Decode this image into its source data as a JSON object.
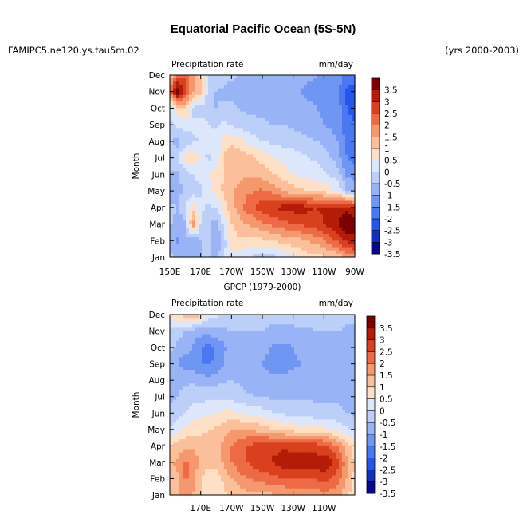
{
  "figure": {
    "title": "Equatorial Pacific Ocean (5S-5N)",
    "case_name": "FAMIPC5.ne120.ys.tau5m.02",
    "years": "(yrs 2000-2003)"
  },
  "chart_data": [
    {
      "type": "heatmap",
      "title": "",
      "left_label": "Precipitation rate",
      "units": "mm/day",
      "ylabel": "Month",
      "xlabel": "",
      "x_tick_labels": [
        "150E",
        "170E",
        "170W",
        "150W",
        "130W",
        "110W",
        "90W"
      ],
      "y_tick_labels": [
        "Jan",
        "Feb",
        "Mar",
        "Apr",
        "May",
        "Jun",
        "Jul",
        "Aug",
        "Sep",
        "Oct",
        "Nov",
        "Dec"
      ],
      "xlim": [
        150,
        270
      ],
      "ylim": [
        1,
        12
      ],
      "levels": [
        -3.5,
        -3,
        -2.5,
        -2,
        -1.5,
        -1,
        -0.5,
        0,
        0.5,
        1,
        1.5,
        2,
        2.5,
        3,
        3.5
      ],
      "colorbar_labels": [
        "3.5",
        "3",
        "2.5",
        "2",
        "1.5",
        "1",
        "0.5",
        "0",
        "-0.5",
        "-1",
        "-1.5",
        "-2",
        "-2.5",
        "-3",
        "-3.5"
      ],
      "colors": [
        "#08088c",
        "#1030c0",
        "#2456ec",
        "#4a78f2",
        "#7096f4",
        "#98b4f6",
        "#bccff8",
        "#dde7fb",
        "#fde0c6",
        "#fbc09a",
        "#f6986e",
        "#ee6a44",
        "#d8401e",
        "#b41c08",
        "#7c0202"
      ],
      "x_nodes": [
        150,
        155,
        160,
        165,
        170,
        175,
        180,
        185,
        190,
        195,
        200,
        205,
        210,
        215,
        220,
        225,
        230,
        235,
        240,
        245,
        250,
        255,
        260,
        265,
        270
      ],
      "y_nodes": [
        1,
        2,
        3,
        4,
        5,
        6,
        7,
        8,
        9,
        10,
        11,
        12
      ],
      "z": [
        [
          -0.8,
          -1.2,
          -1.3,
          -1.2,
          -1.0,
          -0.9,
          -1.2,
          -0.5,
          -0.2,
          -0.2,
          -0.4,
          -0.6,
          -0.7,
          -0.7,
          -0.6,
          -0.3,
          -0.1,
          0.1,
          0.3,
          0.3,
          0.4,
          0.5,
          0.8,
          1.2,
          1.4
        ],
        [
          -1.2,
          -1.6,
          -1.0,
          -1.4,
          -1.0,
          -0.8,
          -1.4,
          -0.8,
          0.3,
          0.4,
          0.3,
          0.3,
          0.4,
          0.5,
          0.6,
          0.7,
          0.8,
          0.9,
          1.0,
          1.2,
          1.5,
          1.8,
          2.2,
          2.6,
          2.8
        ],
        [
          -0.9,
          -1.3,
          -1.1,
          1.5,
          -0.6,
          -0.9,
          -1.2,
          -0.4,
          0.5,
          0.8,
          1.0,
          1.2,
          1.4,
          1.6,
          1.7,
          1.9,
          2.0,
          2.1,
          2.2,
          2.3,
          2.5,
          2.8,
          3.1,
          3.5,
          3.4
        ],
        [
          -0.8,
          -1.0,
          -0.6,
          0.3,
          -0.4,
          -0.6,
          -0.5,
          0.2,
          0.8,
          1.2,
          1.7,
          2.0,
          2.3,
          2.5,
          2.6,
          2.7,
          2.7,
          2.8,
          2.6,
          2.5,
          2.6,
          2.7,
          2.8,
          2.8,
          2.5
        ],
        [
          -1.5,
          -1.3,
          -0.7,
          -0.8,
          -0.6,
          -0.3,
          0.2,
          0.6,
          1.0,
          1.2,
          1.4,
          1.5,
          1.6,
          1.4,
          1.2,
          0.9,
          0.7,
          0.6,
          0.5,
          0.4,
          0.3,
          0.2,
          -0.3,
          -1.0,
          -1.2
        ],
        [
          -1.2,
          -1.1,
          -0.8,
          -0.5,
          -0.3,
          0.0,
          0.3,
          0.5,
          0.7,
          0.8,
          0.9,
          0.9,
          0.8,
          0.6,
          0.4,
          0.2,
          0.0,
          -0.1,
          -0.2,
          -0.3,
          -0.4,
          -0.6,
          -0.9,
          -1.6,
          -1.8
        ],
        [
          -0.5,
          -0.6,
          0.3,
          0.5,
          -0.3,
          -0.6,
          -0.4,
          0.6,
          1.0,
          0.9,
          0.7,
          0.5,
          0.3,
          0.1,
          -0.1,
          -0.2,
          -0.3,
          -0.4,
          -0.5,
          -0.6,
          -0.8,
          -1.0,
          -1.4,
          -2.0,
          -2.2
        ],
        [
          -1.0,
          -1.2,
          -0.8,
          -0.6,
          -0.5,
          -0.3,
          -0.2,
          0.2,
          0.3,
          0.2,
          -0.1,
          -0.3,
          -0.5,
          -0.6,
          -0.6,
          -0.7,
          -0.7,
          -0.8,
          -0.9,
          -1.0,
          -1.1,
          -1.3,
          -1.6,
          -2.2,
          -2.4
        ],
        [
          -0.6,
          -0.4,
          -0.2,
          -0.4,
          -0.3,
          -0.5,
          -0.6,
          -0.4,
          -0.5,
          -0.7,
          -0.8,
          -0.9,
          -0.9,
          -1.0,
          -1.0,
          -1.0,
          -1.1,
          -1.2,
          -1.3,
          -1.4,
          -1.5,
          -1.6,
          -1.8,
          -2.4,
          -2.5
        ],
        [
          -0.4,
          0.3,
          0.6,
          -0.6,
          -0.7,
          -0.9,
          -1.0,
          -0.9,
          -0.9,
          -1.0,
          -1.1,
          -1.1,
          -1.1,
          -1.2,
          -1.2,
          -1.2,
          -1.3,
          -1.4,
          -1.4,
          -1.5,
          -1.6,
          -1.7,
          -1.9,
          -2.5,
          -2.6
        ],
        [
          1.5,
          3.6,
          2.2,
          1.1,
          0.6,
          -0.7,
          -1.0,
          -1.1,
          -1.2,
          -1.3,
          -1.3,
          -1.4,
          -1.4,
          -1.5,
          -1.5,
          -1.4,
          -1.5,
          -1.5,
          -1.6,
          -1.6,
          -1.6,
          -1.8,
          -2.0,
          -2.6,
          -2.7
        ],
        [
          0.6,
          1.6,
          2.0,
          1.2,
          0.4,
          -0.5,
          -0.7,
          -0.8,
          -0.9,
          -1.0,
          -1.1,
          -1.1,
          -1.2,
          -1.2,
          -1.3,
          -1.3,
          -1.3,
          -1.4,
          -1.4,
          -1.5,
          -1.5,
          -1.6,
          -1.8,
          -2.2,
          -2.3
        ]
      ]
    },
    {
      "type": "heatmap",
      "title": "GPCP (1979-2000)",
      "left_label": "Precipitation rate",
      "units": "mm/day",
      "ylabel": "Month",
      "xlabel": "",
      "x_tick_labels": [
        "170E",
        "170W",
        "150W",
        "130W",
        "110W"
      ],
      "y_tick_labels": [
        "Jan",
        "Feb",
        "Mar",
        "Apr",
        "May",
        "Jun",
        "Jul",
        "Aug",
        "Sep",
        "Oct",
        "Nov",
        "Dec"
      ],
      "xlim": [
        150,
        270
      ],
      "ylim": [
        1,
        12
      ],
      "levels": [
        -3.5,
        -3,
        -2.5,
        -2,
        -1.5,
        -1,
        -0.5,
        0,
        0.5,
        1,
        1.5,
        2,
        2.5,
        3,
        3.5
      ],
      "colorbar_labels": [
        "3.5",
        "3",
        "2.5",
        "2",
        "1.5",
        "1",
        "0.5",
        "0",
        "-0.5",
        "-1",
        "-1.5",
        "-2",
        "-2.5",
        "-3",
        "-3.5"
      ],
      "colors": [
        "#08088c",
        "#1030c0",
        "#2456ec",
        "#4a78f2",
        "#7096f4",
        "#98b4f6",
        "#bccff8",
        "#dde7fb",
        "#fde0c6",
        "#fbc09a",
        "#f6986e",
        "#ee6a44",
        "#d8401e",
        "#b41c08",
        "#7c0202"
      ],
      "x_nodes": [
        150,
        155,
        160,
        165,
        170,
        175,
        180,
        185,
        190,
        195,
        200,
        205,
        210,
        215,
        220,
        225,
        230,
        235,
        240,
        245,
        250,
        255,
        260,
        265,
        270
      ],
      "y_nodes": [
        1,
        2,
        3,
        4,
        5,
        6,
        7,
        8,
        9,
        10,
        11,
        12
      ],
      "z": [
        [
          0.8,
          0.9,
          1.2,
          1.0,
          0.6,
          0.3,
          0.2,
          0.4,
          0.6,
          0.7,
          0.8,
          0.8,
          0.9,
          0.9,
          1.0,
          1.0,
          1.1,
          1.1,
          1.2,
          1.2,
          1.3,
          1.2,
          1.0,
          0.6,
          0.2
        ],
        [
          0.6,
          0.9,
          1.6,
          1.3,
          0.5,
          0.3,
          0.2,
          0.6,
          1.0,
          1.3,
          1.5,
          1.6,
          1.7,
          1.8,
          1.9,
          2.0,
          2.1,
          2.0,
          2.0,
          2.1,
          2.2,
          2.0,
          1.6,
          1.0,
          0.3
        ],
        [
          0.9,
          1.1,
          1.6,
          1.4,
          0.8,
          0.6,
          0.7,
          1.1,
          1.5,
          1.8,
          2.0,
          2.2,
          2.4,
          2.5,
          2.6,
          2.8,
          2.8,
          2.9,
          2.8,
          2.8,
          2.9,
          2.6,
          2.0,
          1.2,
          0.4
        ],
        [
          0.5,
          0.7,
          0.9,
          0.9,
          0.7,
          0.6,
          0.8,
          1.1,
          1.5,
          1.8,
          2.0,
          2.2,
          2.3,
          2.4,
          2.4,
          2.4,
          2.3,
          2.3,
          2.3,
          2.2,
          2.1,
          1.8,
          1.3,
          0.7,
          0.2
        ],
        [
          -0.4,
          -0.2,
          0.1,
          0.3,
          0.4,
          0.5,
          0.6,
          0.8,
          1.0,
          1.0,
          1.0,
          0.9,
          0.8,
          0.6,
          0.5,
          0.4,
          0.3,
          0.2,
          0.2,
          0.1,
          0.1,
          0.0,
          -0.2,
          -0.4,
          -0.6
        ],
        [
          -0.9,
          -0.8,
          -0.5,
          -0.3,
          -0.2,
          -0.1,
          0.0,
          0.1,
          0.1,
          0.0,
          -0.1,
          -0.2,
          -0.3,
          -0.4,
          -0.5,
          -0.6,
          -0.6,
          -0.7,
          -0.7,
          -0.8,
          -0.8,
          -0.8,
          -0.9,
          -1.0,
          -1.1
        ],
        [
          -1.1,
          -1.0,
          -0.8,
          -0.7,
          -0.7,
          -0.6,
          -0.6,
          -0.6,
          -0.7,
          -0.8,
          -0.9,
          -1.0,
          -1.0,
          -1.1,
          -1.1,
          -1.1,
          -1.1,
          -1.1,
          -1.1,
          -1.1,
          -1.1,
          -1.1,
          -1.1,
          -1.2,
          -1.3
        ],
        [
          -1.2,
          -1.2,
          -1.1,
          -1.1,
          -1.2,
          -1.3,
          -1.2,
          -1.1,
          -1.0,
          -1.1,
          -1.2,
          -1.3,
          -1.3,
          -1.4,
          -1.4,
          -1.4,
          -1.3,
          -1.3,
          -1.2,
          -1.2,
          -1.2,
          -1.2,
          -1.2,
          -1.3,
          -1.4
        ],
        [
          -1.3,
          -1.5,
          -1.8,
          -1.8,
          -2.0,
          -2.1,
          -1.9,
          -1.5,
          -1.2,
          -1.2,
          -1.3,
          -1.4,
          -1.5,
          -1.6,
          -1.7,
          -1.7,
          -1.6,
          -1.5,
          -1.4,
          -1.3,
          -1.3,
          -1.3,
          -1.3,
          -1.4,
          -1.5
        ],
        [
          -0.9,
          -1.1,
          -1.3,
          -1.5,
          -2.0,
          -2.2,
          -2.0,
          -1.6,
          -1.3,
          -1.2,
          -1.2,
          -1.3,
          -1.4,
          -1.5,
          -1.6,
          -1.6,
          -1.5,
          -1.4,
          -1.3,
          -1.2,
          -1.2,
          -1.2,
          -1.2,
          -1.3,
          -1.4
        ],
        [
          -0.6,
          -0.8,
          -1.0,
          -1.2,
          -1.3,
          -1.3,
          -1.2,
          -1.1,
          -1.0,
          -1.0,
          -1.0,
          -1.0,
          -1.0,
          -1.1,
          -1.1,
          -1.1,
          -1.1,
          -1.1,
          -1.1,
          -1.0,
          -1.0,
          -1.0,
          -1.0,
          -1.1,
          -1.2
        ],
        [
          0.2,
          0.4,
          0.9,
          1.2,
          0.6,
          -0.3,
          -0.4,
          -0.5,
          -0.6,
          -0.6,
          -0.7,
          -0.7,
          -0.8,
          -0.8,
          -0.8,
          -0.8,
          -0.8,
          -0.7,
          -0.7,
          -0.7,
          -0.7,
          -0.7,
          -0.7,
          -0.8,
          -0.8
        ]
      ]
    }
  ]
}
